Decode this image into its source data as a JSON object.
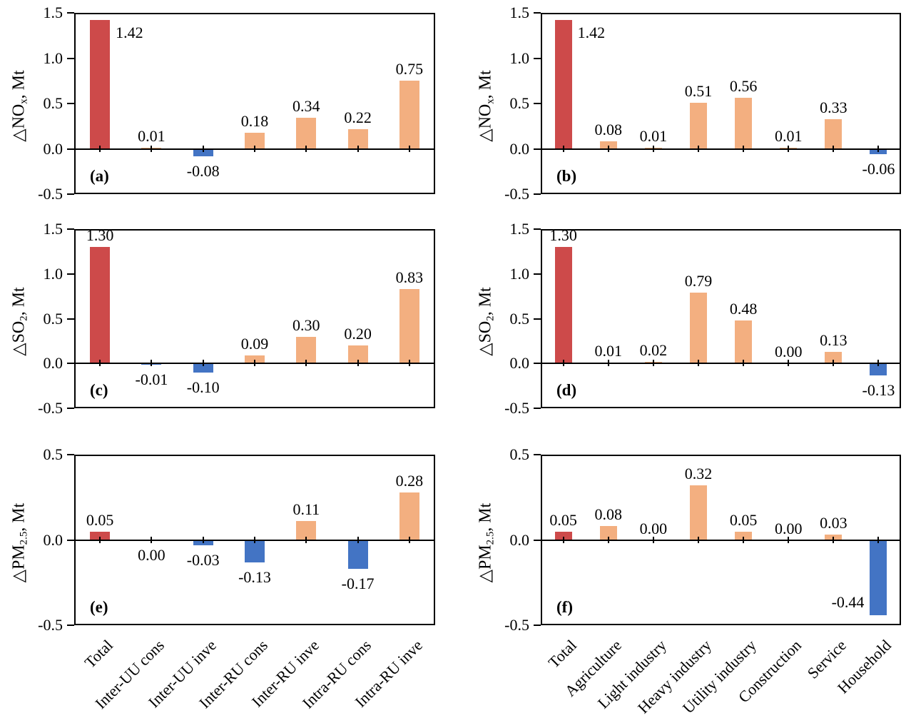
{
  "figure": {
    "background": "#ffffff",
    "colors": {
      "total_bar": "#CD4A4A",
      "positive_bar": "#F3AF80",
      "negative_bar": "#4374C4",
      "axis": "#000000"
    }
  },
  "chart_data": [
    {
      "type": "bar",
      "panel": "(a)",
      "ylabel": "△NOx, Mt",
      "ylabel_parts": {
        "prefix": "△NO",
        "sub": "x",
        "suffix": ", Mt"
      },
      "ylim": [
        -0.5,
        1.5
      ],
      "yticks": [
        "1.5",
        "1.0",
        "0.5",
        "0.0",
        "-0.5"
      ],
      "categories": [
        "Total",
        "Inter-UU cons",
        "Inter-UU inve",
        "Inter-RU cons",
        "Inter-RU inve",
        "Intra-RU cons",
        "Intra-RU inve"
      ],
      "values": [
        1.42,
        0.01,
        -0.08,
        0.18,
        0.34,
        0.22,
        0.75
      ],
      "value_labels": [
        "1.42",
        "0.01",
        "-0.08",
        "0.18",
        "0.34",
        "0.22",
        "0.75"
      ],
      "label_side": [
        "auto",
        "auto",
        "auto",
        "auto",
        "auto",
        "auto",
        "auto"
      ],
      "show_xticklabels": false
    },
    {
      "type": "bar",
      "panel": "(b)",
      "ylabel": "△NOx, Mt",
      "ylabel_parts": {
        "prefix": "△NO",
        "sub": "x",
        "suffix": ", Mt"
      },
      "ylim": [
        -0.5,
        1.5
      ],
      "yticks": [
        "1.5",
        "1.0",
        "0.5",
        "0.0",
        "-0.5"
      ],
      "categories": [
        "Total",
        "Agriculture",
        "Light industry",
        "Heavy industry",
        "Utility industry",
        "Construction",
        "Service",
        "Household"
      ],
      "values": [
        1.42,
        0.08,
        0.01,
        0.51,
        0.56,
        0.01,
        0.33,
        -0.06
      ],
      "value_labels": [
        "1.42",
        "0.08",
        "0.01",
        "0.51",
        "0.56",
        "0.01",
        "0.33",
        "-0.06"
      ],
      "label_side": [
        "auto",
        "auto",
        "auto",
        "auto",
        "auto",
        "auto",
        "auto",
        "auto"
      ],
      "show_xticklabels": false
    },
    {
      "type": "bar",
      "panel": "(c)",
      "ylabel": "△SO2, Mt",
      "ylabel_parts": {
        "prefix": "△SO",
        "sub": "2",
        "suffix": ", Mt"
      },
      "ylim": [
        -0.5,
        1.5
      ],
      "yticks": [
        "1.5",
        "1.0",
        "0.5",
        "0.0",
        "-0.5"
      ],
      "categories": [
        "Total",
        "Inter-UU cons",
        "Inter-UU inve",
        "Inter-RU cons",
        "Inter-RU inve",
        "Intra-RU cons",
        "Intra-RU inve"
      ],
      "values": [
        1.3,
        -0.01,
        -0.1,
        0.09,
        0.3,
        0.2,
        0.83
      ],
      "value_labels": [
        "1.30",
        "-0.01",
        "-0.10",
        "0.09",
        "0.30",
        "0.20",
        "0.83"
      ],
      "label_side": [
        "auto",
        "auto",
        "auto",
        "auto",
        "auto",
        "auto",
        "auto"
      ],
      "show_xticklabels": false
    },
    {
      "type": "bar",
      "panel": "(d)",
      "ylabel": "△SO2, Mt",
      "ylabel_parts": {
        "prefix": "△SO",
        "sub": "2",
        "suffix": ", Mt"
      },
      "ylim": [
        -0.5,
        1.5
      ],
      "yticks": [
        "1.5",
        "1.0",
        "0.5",
        "0.0",
        "-0.5"
      ],
      "categories": [
        "Total",
        "Agriculture",
        "Light industry",
        "Heavy industry",
        "Utility industry",
        "Construction",
        "Service",
        "Household"
      ],
      "values": [
        1.3,
        0.01,
        0.02,
        0.79,
        0.48,
        0.0,
        0.13,
        -0.13
      ],
      "value_labels": [
        "1.30",
        "0.01",
        "0.02",
        "0.79",
        "0.48",
        "0.00",
        "0.13",
        "-0.13"
      ],
      "label_side": [
        "auto",
        "auto",
        "auto",
        "auto",
        "auto",
        "auto",
        "auto",
        "auto"
      ],
      "show_xticklabels": false
    },
    {
      "type": "bar",
      "panel": "(e)",
      "ylabel": "△PM2.5, Mt",
      "ylabel_parts": {
        "prefix": "△PM",
        "sub": "2.5",
        "suffix": ", Mt"
      },
      "ylim": [
        -0.5,
        0.5
      ],
      "yticks": [
        "0.5",
        "0.0",
        "-0.5"
      ],
      "categories": [
        "Total",
        "Inter-UU cons",
        "Inter-UU inve",
        "Inter-RU cons",
        "Inter-RU inve",
        "Intra-RU cons",
        "Intra-RU inve"
      ],
      "values": [
        0.05,
        0.0,
        -0.03,
        -0.13,
        0.11,
        -0.17,
        0.28
      ],
      "value_labels": [
        "0.05",
        "0.00",
        "-0.03",
        "-0.13",
        "0.11",
        "-0.17",
        "0.28"
      ],
      "label_side": [
        "auto",
        "below",
        "auto",
        "auto",
        "auto",
        "auto",
        "auto"
      ],
      "show_xticklabels": true
    },
    {
      "type": "bar",
      "panel": "(f)",
      "ylabel": "△PM2.5, Mt",
      "ylabel_parts": {
        "prefix": "△PM",
        "sub": "2.5",
        "suffix": ", Mt"
      },
      "ylim": [
        -0.5,
        0.5
      ],
      "yticks": [
        "0.5",
        "0.0",
        "-0.5"
      ],
      "categories": [
        "Total",
        "Agriculture",
        "Light industry",
        "Heavy industry",
        "Utility industry",
        "Construction",
        "Service",
        "Household"
      ],
      "values": [
        0.05,
        0.08,
        0.0,
        0.32,
        0.05,
        0.0,
        0.03,
        -0.44
      ],
      "value_labels": [
        "0.05",
        "0.08",
        "0.00",
        "0.32",
        "0.05",
        "0.00",
        "0.03",
        "-0.44"
      ],
      "label_side": [
        "auto",
        "auto",
        "auto",
        "auto",
        "auto",
        "auto",
        "auto",
        "auto"
      ],
      "show_xticklabels": true
    }
  ]
}
